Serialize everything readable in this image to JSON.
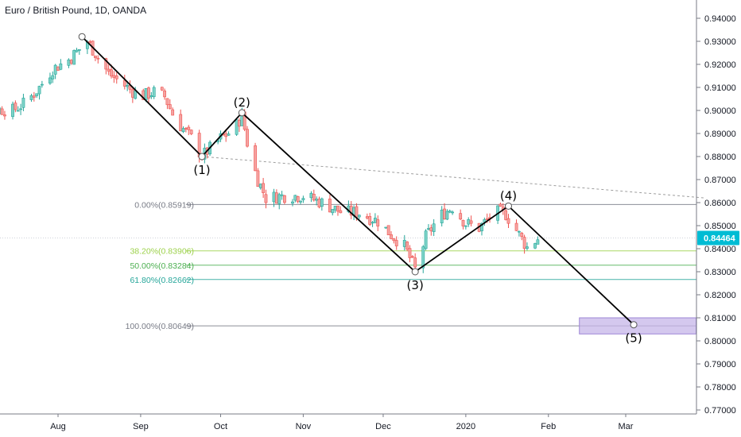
{
  "header": {
    "title": "Euro / British Pound, 1D, OANDA"
  },
  "colors": {
    "up": "#26a69a",
    "up_fill": "#7dd3c8",
    "down": "#ef5350",
    "down_fill": "#f5a3a1",
    "grid": "#e6e6e6",
    "axis": "#787b86",
    "wave": "#000000",
    "price_tag": "#00bcd4",
    "target_box": "#c5b5e8",
    "target_box_border": "#9e86d6",
    "trendline": "#9e9e9e"
  },
  "price_tag": {
    "value": "0.84464"
  },
  "chart_data": {
    "type": "candlestick",
    "symbol": "Euro / British Pound, 1D, OANDA",
    "y_axis": {
      "range": [
        0.765,
        0.945
      ],
      "ticks": [
        "0.94000",
        "0.93000",
        "0.92000",
        "0.91000",
        "0.90000",
        "0.89000",
        "0.88000",
        "0.87000",
        "0.86000",
        "0.85000",
        "0.84000",
        "0.83000",
        "0.82000",
        "0.81000",
        "0.80000",
        "0.79000",
        "0.78000",
        "0.77000"
      ]
    },
    "x_axis": {
      "range": [
        "2019-06-24",
        "2020-03-31"
      ],
      "ticks": [
        {
          "label": "Aug",
          "date": "2019-08-01"
        },
        {
          "label": "Sep",
          "date": "2019-09-01"
        },
        {
          "label": "Oct",
          "date": "2019-10-01"
        },
        {
          "label": "Nov",
          "date": "2019-11-01"
        },
        {
          "label": "Dec",
          "date": "2019-12-01"
        },
        {
          "label": "2020",
          "date": "2020-01-01"
        },
        {
          "label": "Feb",
          "date": "2020-02-01"
        },
        {
          "label": "Mar",
          "date": "2020-03-01"
        }
      ]
    },
    "grid": false,
    "price_path": [
      [
        "2019-06-24",
        0.8955
      ],
      [
        "2019-07-01",
        0.8975
      ],
      [
        "2019-07-05",
        0.899
      ],
      [
        "2019-07-10",
        0.9005
      ],
      [
        "2019-07-15",
        0.9
      ],
      [
        "2019-07-20",
        0.9035
      ],
      [
        "2019-07-25",
        0.91
      ],
      [
        "2019-07-30",
        0.918
      ],
      [
        "2019-08-05",
        0.922
      ],
      [
        "2019-08-12",
        0.93
      ],
      [
        "2019-08-20",
        0.916
      ],
      [
        "2019-08-27",
        0.91
      ],
      [
        "2019-09-01",
        0.906
      ],
      [
        "2019-09-06",
        0.908
      ],
      [
        "2019-09-10",
        0.906
      ],
      [
        "2019-09-14",
        0.896
      ],
      [
        "2019-09-20",
        0.888
      ],
      [
        "2019-09-24",
        0.88
      ],
      [
        "2019-10-01",
        0.888
      ],
      [
        "2019-10-06",
        0.8915
      ],
      [
        "2019-10-09",
        0.898
      ],
      [
        "2019-10-12",
        0.88
      ],
      [
        "2019-10-15",
        0.87
      ],
      [
        "2019-10-18",
        0.862
      ],
      [
        "2019-10-25",
        0.863
      ],
      [
        "2019-11-01",
        0.863
      ],
      [
        "2019-11-08",
        0.86
      ],
      [
        "2019-11-15",
        0.856
      ],
      [
        "2019-11-22",
        0.8555
      ],
      [
        "2019-11-29",
        0.852
      ],
      [
        "2019-12-04",
        0.846
      ],
      [
        "2019-12-09",
        0.841
      ],
      [
        "2019-12-13",
        0.831
      ],
      [
        "2019-12-17",
        0.845
      ],
      [
        "2019-12-22",
        0.854
      ],
      [
        "2019-12-27",
        0.858
      ],
      [
        "2020-01-01",
        0.851
      ],
      [
        "2020-01-06",
        0.849
      ],
      [
        "2020-01-12",
        0.856
      ],
      [
        "2020-01-16",
        0.855
      ],
      [
        "2020-01-20",
        0.848
      ],
      [
        "2020-01-24",
        0.8405
      ],
      [
        "2020-01-28",
        0.8445
      ]
    ],
    "elliott_waves": [
      {
        "label": "",
        "date": "2019-08-10",
        "price": 0.932
      },
      {
        "label": "(1)",
        "date": "2019-09-24",
        "price": 0.88
      },
      {
        "label": "(2)",
        "date": "2019-10-09",
        "price": 0.899
      },
      {
        "label": "(3)",
        "date": "2019-12-13",
        "price": 0.83
      },
      {
        "label": "(4)",
        "date": "2020-01-17",
        "price": 0.8585
      },
      {
        "label": "(5)",
        "date": "2020-03-04",
        "price": 0.807
      }
    ],
    "fibonacci": [
      {
        "label": "0.00%(0.85919)",
        "level": "0.00%",
        "price": 0.85919,
        "color": "#787b86"
      },
      {
        "label": "38.20%(0.83906)",
        "level": "38.20%",
        "price": 0.83906,
        "color": "#9cd14a"
      },
      {
        "label": "50.00%(0.83284)",
        "level": "50.00%",
        "price": 0.83284,
        "color": "#4caf50"
      },
      {
        "label": "61.80%(0.82662)",
        "level": "61.80%",
        "price": 0.82662,
        "color": "#26a69a"
      },
      {
        "label": "100.00%(0.80649)",
        "level": "100.00%",
        "price": 0.80649,
        "color": "#787b86"
      }
    ],
    "trendline": {
      "from": {
        "date": "2019-09-24",
        "price": 0.88
      },
      "to": {
        "date": "2020-03-31",
        "price": 0.862
      }
    },
    "target_zone": {
      "from_date": "2020-02-15",
      "to_date": "2020-03-31",
      "price_high": 0.81,
      "price_low": 0.803
    },
    "last_price": 0.84464
  }
}
